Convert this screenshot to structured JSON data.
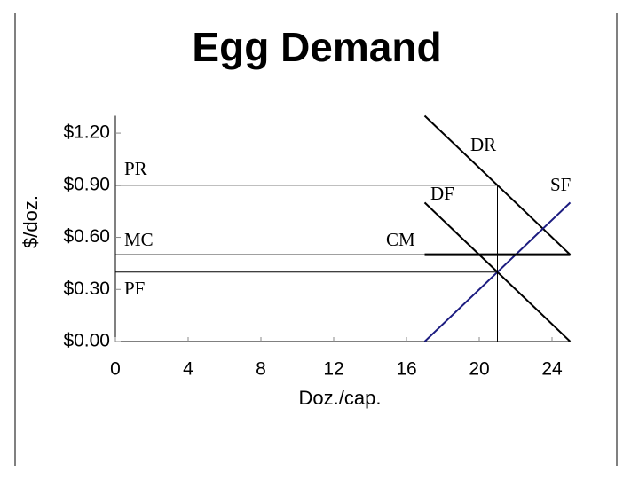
{
  "chart_data": {
    "type": "line",
    "title": "Egg Demand",
    "x_label": "Doz./cap.",
    "y_label": "$/doz.",
    "xlim": [
      0,
      25
    ],
    "ylim": [
      0,
      1.3
    ],
    "xticks": [
      0,
      4,
      8,
      12,
      16,
      20,
      24
    ],
    "yticks": [
      {
        "value": 0,
        "label": "$0.00"
      },
      {
        "value": 0.3,
        "label": "$0.30"
      },
      {
        "value": 0.6,
        "label": "$0.60"
      },
      {
        "value": 0.9,
        "label": "$0.90"
      },
      {
        "value": 1.2,
        "label": "$1.20"
      }
    ],
    "series": [
      {
        "color": "#000000",
        "x": [
          17,
          25
        ],
        "values": [
          1.3,
          0.5
        ]
      },
      {
        "color": "#000000",
        "x": [
          17,
          25
        ],
        "values": [
          0.8,
          0
        ]
      },
      {
        "color": "#1c1c80",
        "x": [
          17,
          25
        ],
        "values": [
          0,
          0.8
        ]
      },
      {
        "color": "#000000",
        "x": [
          17,
          25
        ],
        "values": [
          0.5,
          0.5
        ]
      },
      {
        "color": "#000000",
        "x": [
          0,
          21
        ],
        "values": [
          0.9,
          0.9
        ]
      },
      {
        "color": "#000000",
        "x": [
          21,
          21
        ],
        "values": [
          0,
          0.9
        ]
      },
      {
        "color": "#000000",
        "x": [
          0,
          25
        ],
        "values": [
          0.5,
          0.5
        ]
      },
      {
        "color": "#000000",
        "x": [
          0,
          21
        ],
        "values": [
          0.4,
          0.4
        ]
      }
    ],
    "annotations": [
      "PR",
      "MC",
      "PF",
      "DR",
      "DF",
      "SF",
      "CM"
    ]
  }
}
